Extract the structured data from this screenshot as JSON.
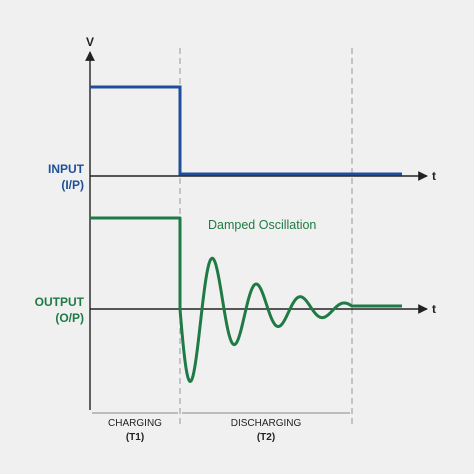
{
  "labels": {
    "y_axis": "V",
    "x_axis_input": "t",
    "x_axis_output": "t",
    "input_line1": "INPUT",
    "input_line2": "(I/P)",
    "output_line1": "OUTPUT",
    "output_line2": "(O/P)",
    "annotation": "Damped Oscillation",
    "charging_line1": "CHARGING",
    "charging_line2": "(T1)",
    "discharging_line1": "DISCHARGING",
    "discharging_line2": "(T2)"
  },
  "colors": {
    "input": "#1f4e9c",
    "output": "#1f7a45",
    "axis": "#222222",
    "guide": "#999999",
    "background": "#f0f0f0"
  }
}
